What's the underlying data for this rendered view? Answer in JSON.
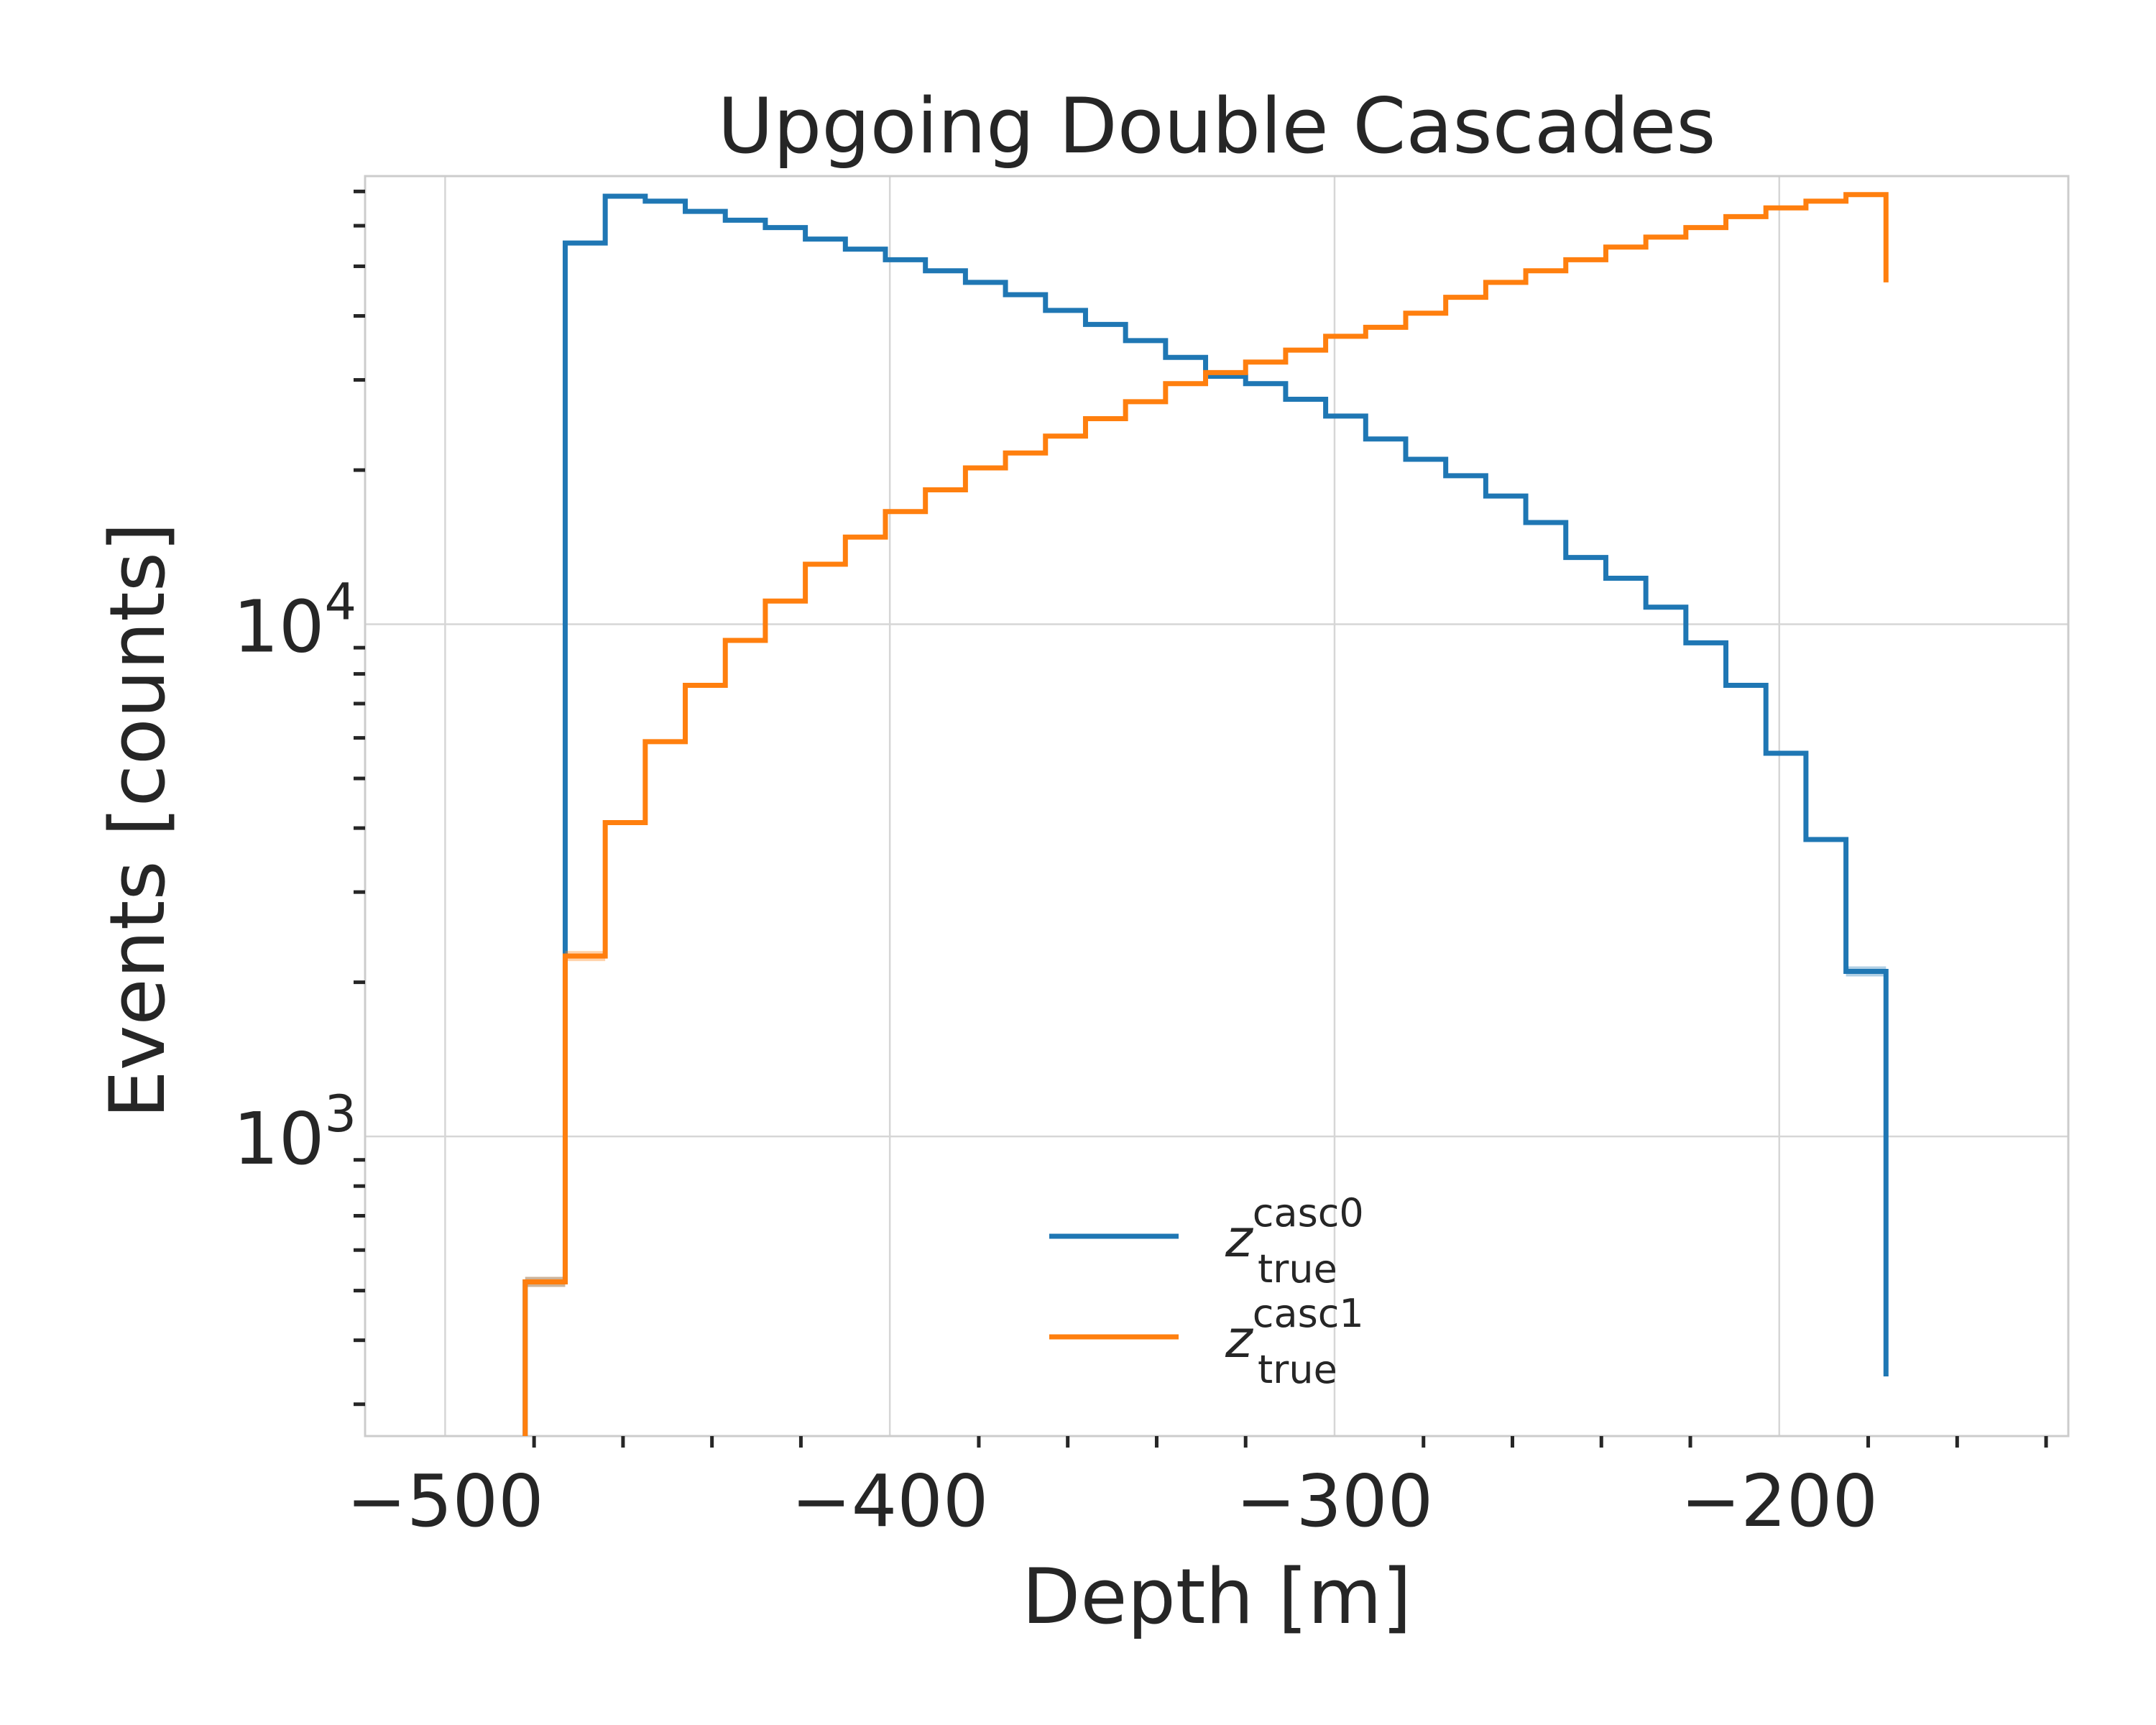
{
  "chart_data": {
    "type": "line",
    "title": "Upgoing Double Cascades",
    "xlabel": "Depth [m]",
    "ylabel": "Events [counts]",
    "x_scale": "linear",
    "y_scale": "log",
    "xlim": [
      -518,
      -135
    ],
    "ylim": [
      260,
      75000
    ],
    "x_ticks": [
      -500,
      -400,
      -300,
      -200
    ],
    "x_tick_labels": [
      "−500",
      "−400",
      "−300",
      "−200"
    ],
    "y_ticks": [
      {
        "value": 1000,
        "base": "10",
        "exp": "3"
      },
      {
        "value": 10000,
        "base": "10",
        "exp": "4"
      }
    ],
    "grid": true,
    "legend_position": "lower center",
    "bin_edges": [
      -482,
      -473,
      -464,
      -455,
      -446,
      -437,
      -428,
      -419,
      -410,
      -401,
      -392,
      -383,
      -374,
      -365,
      -356,
      -347,
      -338,
      -329,
      -320,
      -311,
      -302,
      -293,
      -284,
      -275,
      -266,
      -257,
      -248,
      -239,
      -230,
      -221,
      -212,
      -203,
      -194,
      -185,
      -176
    ],
    "series": [
      {
        "name": "z^casc0_true",
        "legend": {
          "base": "z",
          "sup": "casc0",
          "sub": "true"
        },
        "color": "#1f77b4",
        "values": [
          520,
          55500,
          68500,
          67000,
          64000,
          61500,
          59500,
          56500,
          54000,
          51500,
          49000,
          46500,
          44000,
          41000,
          38500,
          35800,
          33200,
          30500,
          29500,
          27500,
          25500,
          23000,
          21000,
          19500,
          17800,
          15800,
          13500,
          12300,
          10800,
          9200,
          7600,
          5600,
          3800,
          2100,
          340
        ]
      },
      {
        "name": "z^casc1_true",
        "legend": {
          "base": "z",
          "sup": "casc1",
          "sub": "true"
        },
        "color": "#ff7f0e",
        "values": [
          520,
          2250,
          4100,
          5900,
          7600,
          9300,
          11100,
          13100,
          14800,
          16600,
          18300,
          20200,
          21600,
          23300,
          25200,
          27200,
          29500,
          31000,
          32500,
          34300,
          36500,
          38000,
          40500,
          43500,
          46500,
          49000,
          51500,
          54500,
          57000,
          59500,
          62500,
          65000,
          67000,
          69000,
          46500
        ]
      }
    ]
  }
}
